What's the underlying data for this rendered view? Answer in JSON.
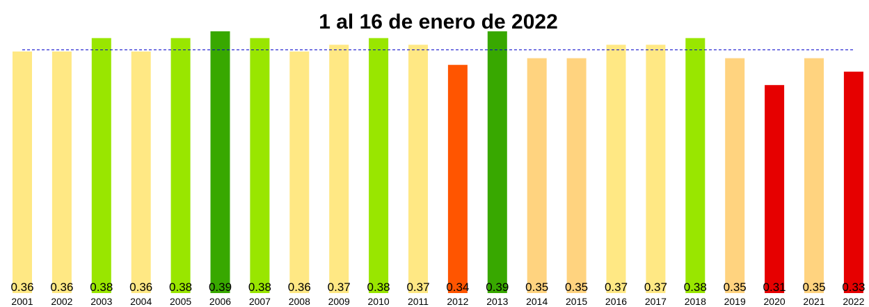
{
  "chart_data": {
    "type": "bar",
    "title": "1 al 16 de enero de 2022",
    "categories": [
      "2001",
      "2002",
      "2003",
      "2004",
      "2005",
      "2006",
      "2007",
      "2008",
      "2009",
      "2010",
      "2011",
      "2012",
      "2013",
      "2014",
      "2015",
      "2016",
      "2017",
      "2018",
      "2019",
      "2020",
      "2021",
      "2022"
    ],
    "values": [
      0.36,
      0.36,
      0.38,
      0.36,
      0.38,
      0.39,
      0.38,
      0.36,
      0.37,
      0.38,
      0.37,
      0.34,
      0.39,
      0.35,
      0.35,
      0.37,
      0.37,
      0.38,
      0.35,
      0.31,
      0.35,
      0.33
    ],
    "value_labels": [
      "0.36",
      "0.36",
      "0.38",
      "0.36",
      "0.38",
      "0.39",
      "0.38",
      "0.36",
      "0.37",
      "0.38",
      "0.37",
      "0.34",
      "0.39",
      "0.35",
      "0.35",
      "0.37",
      "0.37",
      "0.38",
      "0.35",
      "0.31",
      "0.35",
      "0.33"
    ],
    "bar_colors": [
      "#FFE884",
      "#FFE884",
      "#99E600",
      "#FFE884",
      "#99E600",
      "#38A800",
      "#99E600",
      "#FFE884",
      "#FFE884",
      "#99E600",
      "#FFE884",
      "#FF5500",
      "#38A800",
      "#FFD37F",
      "#FFD37F",
      "#FFE884",
      "#FFE884",
      "#99E600",
      "#FFD37F",
      "#E60000",
      "#FFD37F",
      "#E60000"
    ],
    "reference_line": {
      "value": 0.3625,
      "style": "dashed",
      "color": "#0000CC"
    },
    "xlabel": "",
    "ylabel": "",
    "ylim": [
      0,
      0.39
    ],
    "grid": false,
    "legend": "none"
  }
}
